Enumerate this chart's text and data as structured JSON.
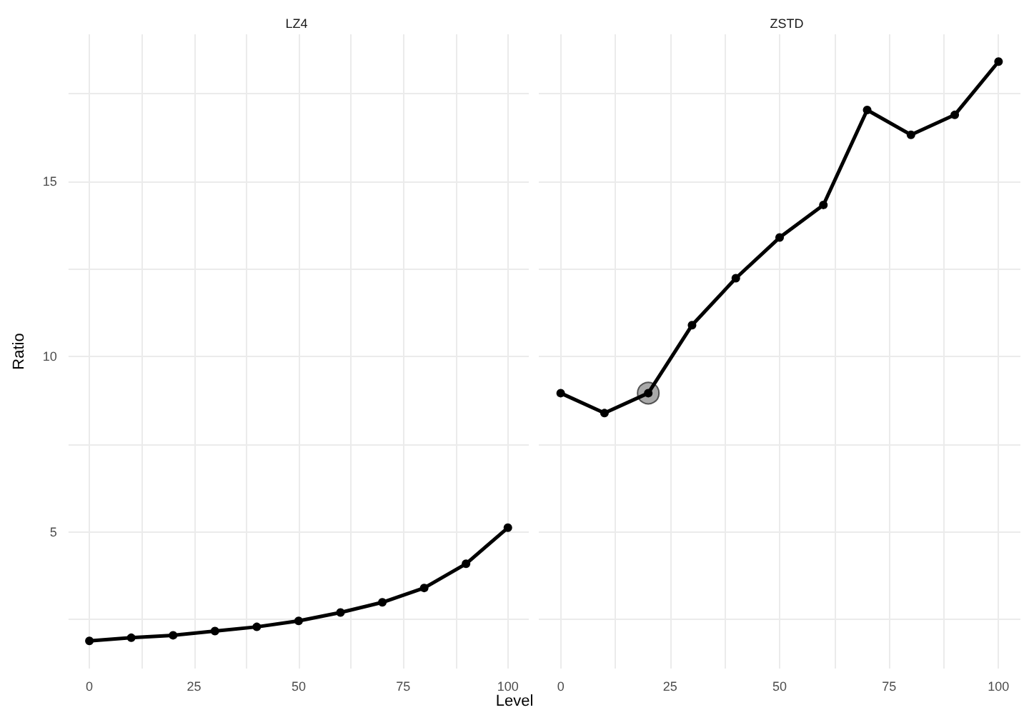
{
  "chart_data": [
    {
      "type": "line",
      "title": "LZ4",
      "xlabel": "Level",
      "ylabel": "Ratio",
      "xlim": [
        -5,
        105
      ],
      "ylim": [
        1.1,
        19.2
      ],
      "xticks": [
        0,
        {
          "value": 12.5,
          "label": null
        },
        25,
        {
          "value": 37.5,
          "label": null
        },
        50,
        {
          "value": 62.5,
          "label": null
        },
        75,
        {
          "value": 87.5,
          "label": null
        },
        100
      ],
      "yticks": [
        {
          "value": 2.5,
          "label": null
        },
        5,
        {
          "value": 7.5,
          "label": null
        },
        10,
        {
          "value": 12.5,
          "label": null
        },
        15,
        {
          "value": 17.5,
          "label": null
        }
      ],
      "grid": true,
      "marker": "circle",
      "series": [
        {
          "color": "#000000",
          "x": [
            0,
            10,
            20,
            30,
            40,
            50,
            60,
            70,
            80,
            90,
            100
          ],
          "values": [
            1.89,
            1.98,
            2.05,
            2.17,
            2.29,
            2.46,
            2.7,
            2.99,
            3.4,
            4.09,
            5.12
          ]
        }
      ]
    },
    {
      "type": "line",
      "title": "ZSTD",
      "xlim": [
        -5,
        105
      ],
      "ylim": [
        1.1,
        19.2
      ],
      "tick_labels": "x",
      "xticks": [
        0,
        {
          "value": 12.5,
          "label": null
        },
        25,
        {
          "value": 37.5,
          "label": null
        },
        50,
        {
          "value": 62.5,
          "label": null
        },
        75,
        {
          "value": 87.5,
          "label": null
        },
        100
      ],
      "yticks": [
        {
          "value": 2.5,
          "label": null
        },
        5,
        {
          "value": 7.5,
          "label": null
        },
        10,
        {
          "value": 12.5,
          "label": null
        },
        15,
        {
          "value": 17.5,
          "label": null
        }
      ],
      "grid": true,
      "marker": "circle",
      "series": [
        {
          "color": "#000000",
          "x": [
            0,
            10,
            20,
            30,
            40,
            50,
            60,
            70,
            80,
            90,
            100
          ],
          "values": [
            8.96,
            8.39,
            8.96,
            10.9,
            12.24,
            13.4,
            14.33,
            17.04,
            16.33,
            16.9,
            18.42
          ]
        },
        {
          "type": "scatter",
          "color": "#a0a0a0",
          "x": [
            20
          ],
          "values": [
            8.96
          ]
        }
      ]
    }
  ]
}
